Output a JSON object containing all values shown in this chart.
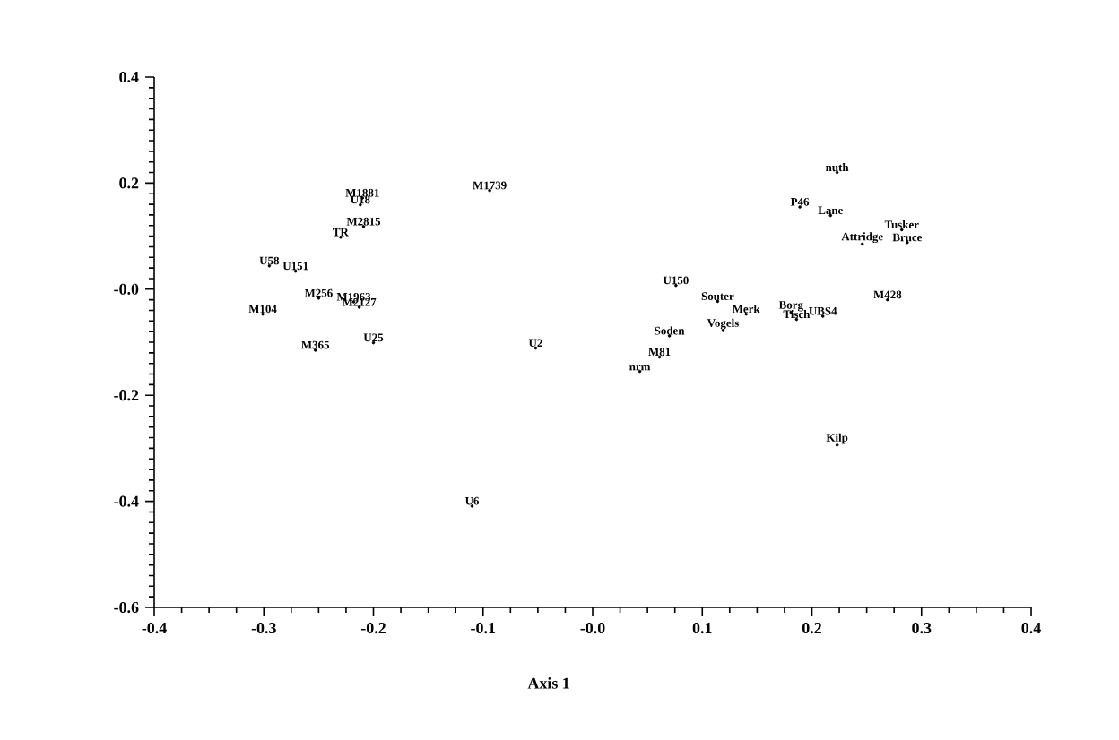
{
  "chart_data": {
    "type": "scatter",
    "xlabel": "Axis 1",
    "marker": "circle",
    "grid": false,
    "legend": false,
    "xlim": [
      -0.4,
      0.4
    ],
    "ylim": [
      -0.6,
      0.4
    ],
    "xticks": [
      -0.4,
      -0.3,
      -0.2,
      -0.1,
      {
        "value": 0,
        "label": "-0.0"
      },
      0.1,
      0.2,
      0.3,
      0.4
    ],
    "yticks": [
      -0.6,
      -0.4,
      -0.2,
      {
        "value": 0,
        "label": "-0.0"
      },
      0.2,
      0.4
    ],
    "series": [
      {
        "color": "#000000",
        "x": [
          -0.21,
          -0.094,
          -0.212,
          -0.209,
          -0.23,
          -0.295,
          -0.271,
          -0.25,
          -0.218,
          -0.213,
          -0.301,
          -0.253,
          -0.2,
          -0.052,
          -0.11,
          0.076,
          0.114,
          0.14,
          0.119,
          0.07,
          0.061,
          0.043,
          0.181,
          0.186,
          0.21,
          0.269,
          0.223,
          0.223,
          0.189,
          0.217,
          0.282,
          0.287,
          0.246
        ],
        "values": [
          0.172,
          0.186,
          0.159,
          0.118,
          0.098,
          0.044,
          0.034,
          -0.017,
          -0.024,
          -0.034,
          -0.047,
          -0.115,
          -0.101,
          -0.111,
          -0.409,
          0.007,
          -0.023,
          -0.047,
          -0.078,
          -0.088,
          -0.128,
          -0.155,
          -0.044,
          -0.057,
          -0.051,
          -0.02,
          -0.294,
          0.22,
          0.155,
          0.139,
          0.112,
          0.088,
          0.085
        ],
        "value_labels": [
          "M1881",
          "M1739",
          "U18",
          "M2815",
          "TR",
          "U58",
          "U151",
          "M256",
          "M1963",
          "M2127",
          "M104",
          "M365",
          "U25",
          "U2",
          "U6",
          "U150",
          "Souter",
          "Merk",
          "Vogels",
          "Soden",
          "M81",
          "nrm",
          "Borg",
          "Tisch",
          "UBS4",
          "M428",
          "Kilp",
          "nuth",
          "P46",
          "Lane",
          "Tusker",
          "Bruce",
          "Attridge"
        ]
      }
    ]
  }
}
